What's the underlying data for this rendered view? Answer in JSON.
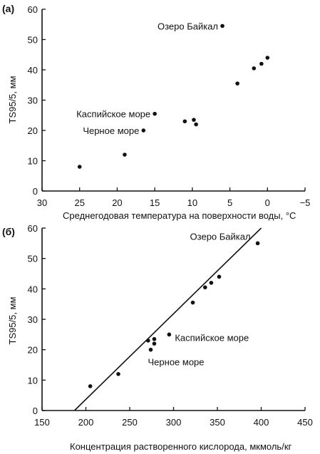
{
  "chart_data": [
    {
      "type": "scatter",
      "panel_label": "(a)",
      "xlabel": "Среднегодовая температура на поверхности воды, °C",
      "ylabel": "TS95/5, мм",
      "xlim": [
        30,
        -5
      ],
      "ylim": [
        0,
        60
      ],
      "x_reversed": true,
      "xticks": [
        30,
        25,
        20,
        15,
        10,
        5,
        0,
        -5
      ],
      "xtick_labels": [
        "30",
        "25",
        "20",
        "15",
        "10",
        "5",
        "0",
        "−5"
      ],
      "yticks": [
        0,
        10,
        20,
        30,
        40,
        50,
        60
      ],
      "ytick_labels": [
        "0",
        "10",
        "20",
        "30",
        "40",
        "50",
        "60"
      ],
      "grid": false,
      "points": [
        {
          "x": 25,
          "y": 8
        },
        {
          "x": 19,
          "y": 12
        },
        {
          "x": 16.5,
          "y": 20
        },
        {
          "x": 15,
          "y": 25.5
        },
        {
          "x": 11,
          "y": 23
        },
        {
          "x": 9.8,
          "y": 23.5
        },
        {
          "x": 9.5,
          "y": 22
        },
        {
          "x": 4,
          "y": 35.5
        },
        {
          "x": 1.8,
          "y": 40.5
        },
        {
          "x": 0.8,
          "y": 42
        },
        {
          "x": 0,
          "y": 44
        },
        {
          "x": 6,
          "y": 54.5
        }
      ],
      "annotations": [
        {
          "text": "Озеро Байкал",
          "x": 6,
          "y": 54.5
        },
        {
          "text": "Каспийское море",
          "x": 15,
          "y": 25.5
        },
        {
          "text": "Черное море",
          "x": 16.5,
          "y": 20
        }
      ]
    },
    {
      "type": "scatter",
      "panel_label": "(б)",
      "xlabel": "Концентрация растворенного кислорода, мкмоль/кг",
      "ylabel": "TS95/5, мм",
      "xlim": [
        150,
        450
      ],
      "ylim": [
        0,
        60
      ],
      "xticks": [
        150,
        200,
        250,
        300,
        350,
        400,
        450
      ],
      "xtick_labels": [
        "150",
        "200",
        "250",
        "300",
        "350",
        "400",
        "450"
      ],
      "yticks": [
        0,
        10,
        20,
        30,
        40,
        50,
        60
      ],
      "ytick_labels": [
        "0",
        "10",
        "20",
        "30",
        "40",
        "50",
        "60"
      ],
      "grid": false,
      "points": [
        {
          "x": 205,
          "y": 8
        },
        {
          "x": 237,
          "y": 12
        },
        {
          "x": 271,
          "y": 23
        },
        {
          "x": 274,
          "y": 20
        },
        {
          "x": 278,
          "y": 22
        },
        {
          "x": 278,
          "y": 23.5
        },
        {
          "x": 295,
          "y": 25
        },
        {
          "x": 322,
          "y": 35.5
        },
        {
          "x": 336,
          "y": 40.5
        },
        {
          "x": 343,
          "y": 42
        },
        {
          "x": 352,
          "y": 44
        },
        {
          "x": 396,
          "y": 55
        }
      ],
      "trendline": {
        "x": [
          187,
          400
        ],
        "y": [
          0,
          60
        ]
      },
      "annotations": [
        {
          "text": "Озеро Байкал",
          "x": 396,
          "y": 55
        },
        {
          "text": "Каспийское море",
          "x": 295,
          "y": 25
        },
        {
          "text": "Черное море",
          "x": 274,
          "y": 20
        }
      ]
    }
  ]
}
